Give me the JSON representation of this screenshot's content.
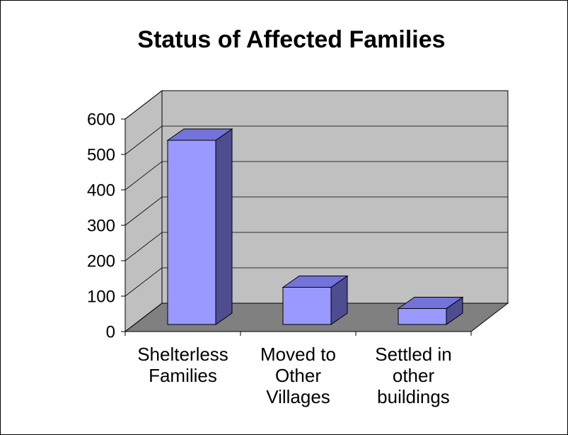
{
  "chart_data": {
    "type": "bar3d",
    "title": "Status of Affected Families",
    "categories": [
      "Shelterless Families",
      "Moved to Other Villages",
      "Settled in other buildings"
    ],
    "values": [
      520,
      105,
      45
    ],
    "color": "#9999ff",
    "ylim": [
      0,
      600
    ],
    "yticks": [
      0,
      100,
      200,
      300,
      400,
      500,
      600
    ],
    "grid": true
  }
}
